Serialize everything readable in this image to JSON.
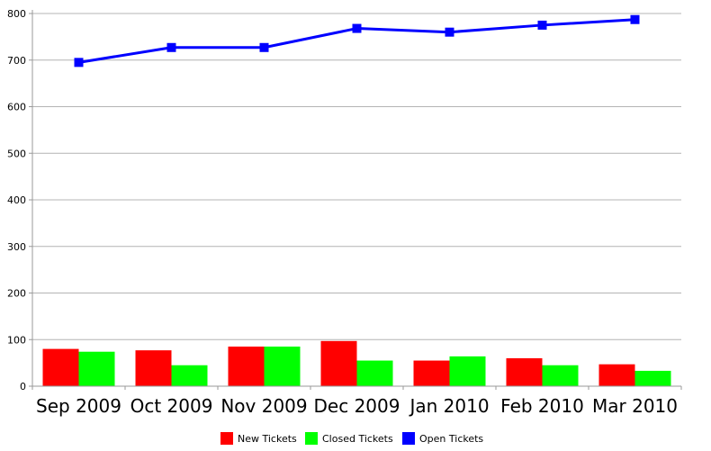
{
  "chart_data": {
    "type": "bar",
    "categories": [
      "Sep 2009",
      "Oct 2009",
      "Nov 2009",
      "Dec 2009",
      "Jan 2010",
      "Feb 2010",
      "Mar 2010"
    ],
    "series": [
      {
        "name": "New Tickets",
        "type": "bar",
        "color": "#ff0000",
        "values": [
          80,
          77,
          85,
          97,
          55,
          60,
          47
        ]
      },
      {
        "name": "Closed Tickets",
        "type": "bar",
        "color": "#00ff00",
        "values": [
          74,
          45,
          85,
          55,
          64,
          45,
          33
        ]
      },
      {
        "name": "Open Tickets",
        "type": "line",
        "color": "#0000ff",
        "values": [
          695,
          727,
          727,
          768,
          760,
          775,
          787
        ]
      }
    ],
    "ylim": [
      0,
      800
    ],
    "yticks": [
      0,
      100,
      200,
      300,
      400,
      500,
      600,
      700,
      800
    ],
    "grid": true,
    "legend": "bottom-center"
  }
}
